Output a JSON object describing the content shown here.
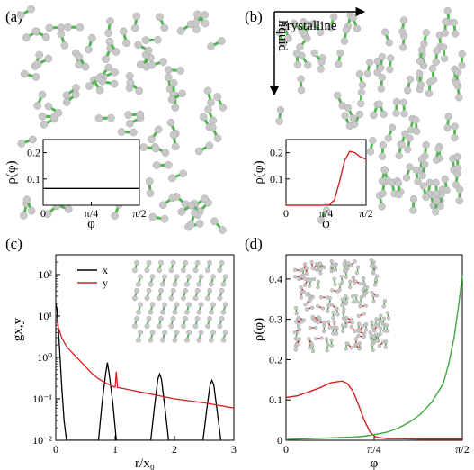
{
  "panels": {
    "a": {
      "label": "(a)"
    },
    "b": {
      "label": "(b)",
      "arrow_right_label": "crystalline",
      "arrow_down_label": "liquid"
    },
    "c": {
      "label": "(c)"
    },
    "d": {
      "label": "(d)"
    }
  },
  "colors": {
    "atom": "#c8c8c8",
    "bond": "#4fb94f",
    "red": "#d42020",
    "green": "#3ea83e",
    "black": "#000000"
  },
  "chart_data": [
    {
      "id": "a-inset",
      "type": "line",
      "xlabel": "φ",
      "ylabel": "ρ(φ)",
      "xlim": [
        0,
        1.5708
      ],
      "ylim": [
        0,
        0.25
      ],
      "xticks": [
        "0",
        "π/4",
        "π/2"
      ],
      "yticks": [
        "0.1",
        "0.2"
      ],
      "series": [
        {
          "color": "#000000",
          "x": [
            0,
            1.5708
          ],
          "y": [
            0.064,
            0.064
          ]
        }
      ]
    },
    {
      "id": "b-inset",
      "type": "line",
      "xlabel": "φ",
      "ylabel": "ρ(φ)",
      "xlim": [
        0,
        1.5708
      ],
      "ylim": [
        0,
        0.25
      ],
      "xticks": [
        "0",
        "π/4",
        "π/2"
      ],
      "yticks": [
        "0.1",
        "0.2"
      ],
      "series": [
        {
          "color": "#d42020",
          "x": [
            0,
            0.7,
            0.85,
            0.95,
            1.05,
            1.15,
            1.25,
            1.35,
            1.45,
            1.5708
          ],
          "y": [
            0,
            0,
            0.002,
            0.02,
            0.09,
            0.17,
            0.205,
            0.2,
            0.185,
            0.175
          ]
        }
      ]
    },
    {
      "id": "c",
      "type": "line",
      "xlabel": "r/x₀",
      "ylabel": "gx,y",
      "log_y": true,
      "xlim": [
        0,
        3
      ],
      "ylim": [
        0.01,
        300
      ],
      "xticks": [
        "0",
        "1",
        "2",
        "3"
      ],
      "yticks": [
        "10⁻²",
        "10⁻¹",
        "10⁰",
        "10¹",
        "10²"
      ],
      "legend": {
        "position": "top-left",
        "entries": [
          {
            "name": "x",
            "color": "#000000"
          },
          {
            "name": "y",
            "color": "#d42020"
          }
        ]
      },
      "series": [
        {
          "name": "x",
          "color": "#000000",
          "x": [
            0,
            0.02,
            0.06,
            0.1,
            0.14,
            0.18,
            0.72,
            0.78,
            0.84,
            0.87,
            0.9,
            0.96,
            1.02,
            1.6,
            1.66,
            1.72,
            1.75,
            1.78,
            1.84,
            1.9,
            2.48,
            2.54,
            2.6,
            2.63,
            2.66,
            2.72,
            2.78
          ],
          "y": [
            20,
            15,
            2,
            0.2,
            0.03,
            0.01,
            0.01,
            0.08,
            0.4,
            0.75,
            0.4,
            0.08,
            0.01,
            0.01,
            0.06,
            0.3,
            0.4,
            0.3,
            0.06,
            0.01,
            0.01,
            0.05,
            0.22,
            0.28,
            0.22,
            0.05,
            0.01
          ]
        },
        {
          "name": "y",
          "color": "#d42020",
          "x": [
            0.02,
            0.05,
            0.1,
            0.15,
            0.2,
            0.3,
            0.4,
            0.5,
            0.6,
            0.7,
            0.8,
            0.9,
            1.0,
            1.02,
            1.04,
            1.2,
            1.5,
            2.0,
            2.5,
            3.0
          ],
          "y": [
            8,
            5,
            3,
            2.2,
            1.7,
            1.2,
            0.85,
            0.6,
            0.42,
            0.32,
            0.26,
            0.22,
            0.19,
            0.45,
            0.19,
            0.17,
            0.14,
            0.1,
            0.08,
            0.06
          ]
        }
      ]
    },
    {
      "id": "d",
      "type": "line",
      "xlabel": "φ",
      "ylabel": "ρ(φ)",
      "xlim": [
        0,
        1.5708
      ],
      "ylim": [
        0,
        0.46
      ],
      "xticks": [
        "0",
        "π/4",
        "π/2"
      ],
      "yticks": [
        "0",
        "0.1",
        "0.2",
        "0.3",
        "0.4"
      ],
      "series": [
        {
          "color": "#d42020",
          "x": [
            0,
            0.1,
            0.2,
            0.3,
            0.4,
            0.5,
            0.55,
            0.6,
            0.65,
            0.7,
            0.75,
            0.8,
            0.9,
            1.0,
            1.2,
            1.4,
            1.5708
          ],
          "y": [
            0.106,
            0.11,
            0.12,
            0.13,
            0.143,
            0.147,
            0.14,
            0.12,
            0.085,
            0.048,
            0.02,
            0.008,
            0.004,
            0.004,
            0.003,
            0.003,
            0.003
          ]
        },
        {
          "color": "#3ea83e",
          "x": [
            0,
            0.2,
            0.4,
            0.6,
            0.7,
            0.8,
            0.9,
            1.0,
            1.1,
            1.2,
            1.3,
            1.4,
            1.45,
            1.5,
            1.54,
            1.5708
          ],
          "y": [
            0.002,
            0.004,
            0.006,
            0.008,
            0.01,
            0.015,
            0.02,
            0.03,
            0.045,
            0.065,
            0.095,
            0.14,
            0.19,
            0.26,
            0.34,
            0.41
          ]
        }
      ]
    }
  ]
}
